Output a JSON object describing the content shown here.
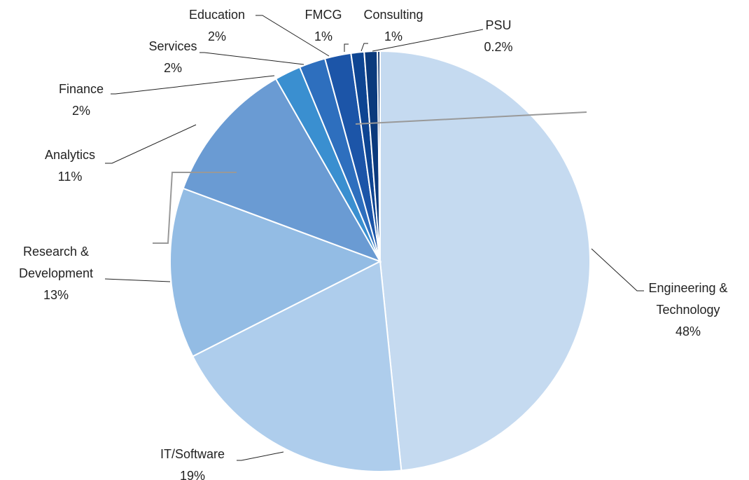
{
  "chart_data": {
    "type": "pie",
    "categories": [
      "Engineering & Technology",
      "IT/Software",
      "Research & Development",
      "Analytics",
      "Finance",
      "Services",
      "Education",
      "FMCG",
      "Consulting",
      "PSU"
    ],
    "values": [
      48,
      19,
      13,
      11,
      2,
      2,
      2,
      1,
      1,
      0.2
    ],
    "value_labels": [
      "48%",
      "19%",
      "13%",
      "11%",
      "2%",
      "2%",
      "2%",
      "1%",
      "1%",
      "0.2%"
    ],
    "colors": [
      "#c5daf0",
      "#aecdec",
      "#93bce4",
      "#6a9bd3",
      "#3a8fd0",
      "#2e6fbe",
      "#1c55a8",
      "#0e4592",
      "#0b3a7c",
      "#082d66"
    ]
  }
}
